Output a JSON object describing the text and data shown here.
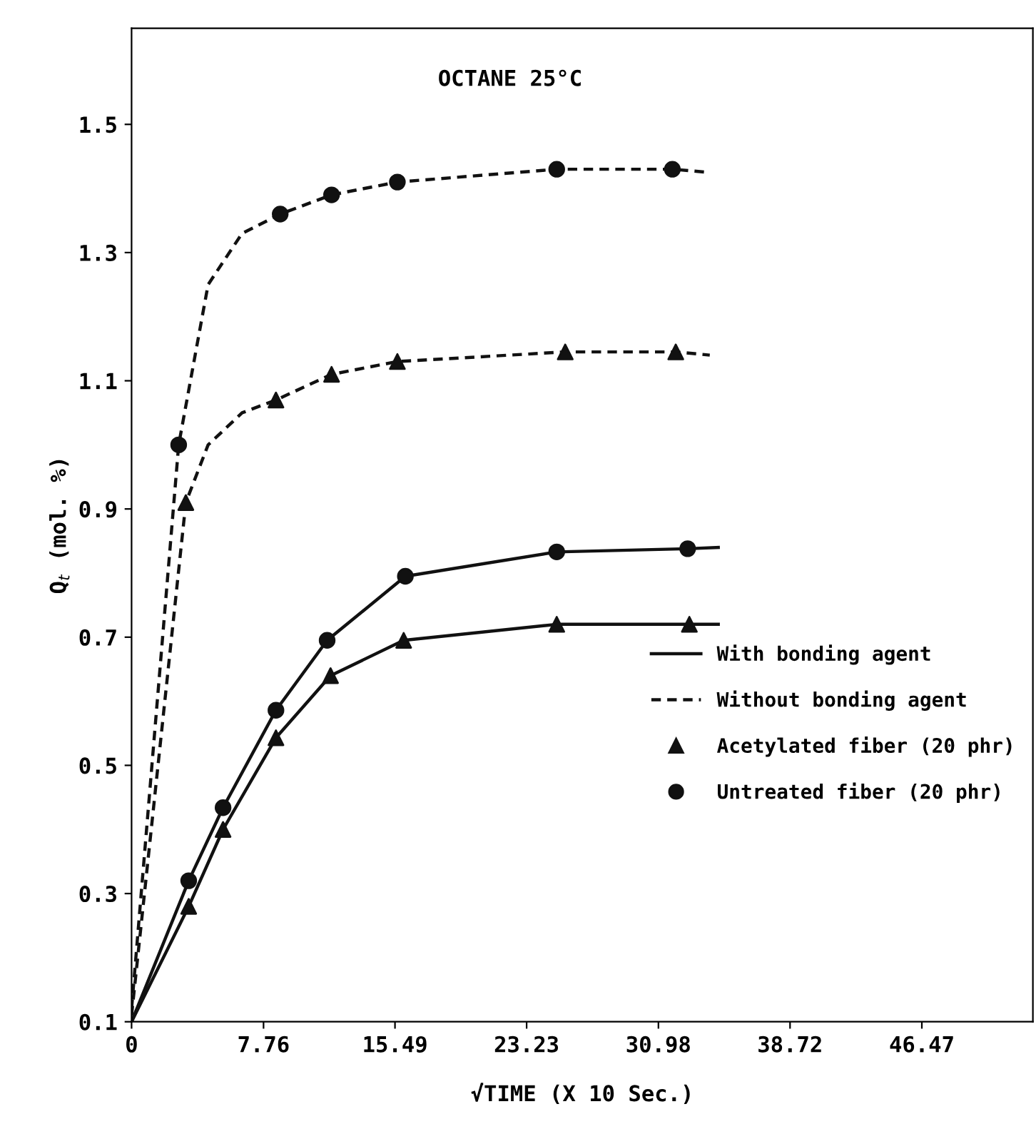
{
  "chart_data": {
    "type": "line",
    "title": "OCTANE 25°C",
    "xlabel": "√TIME (X 10 Sec.)",
    "ylabel": "Q$_{t}$ (mol. %)",
    "xlim": [
      0,
      53
    ],
    "ylim": [
      0.1,
      1.65
    ],
    "xticks": [
      0,
      7.76,
      15.49,
      23.23,
      30.98,
      38.72,
      46.47
    ],
    "yticks": [
      0.1,
      0.3,
      0.5,
      0.7,
      0.9,
      1.1,
      1.3,
      1.5
    ],
    "grid": false,
    "legend": "right",
    "series": [
      {
        "name": "With bonding agent",
        "line_style": "solid",
        "marker": "none",
        "color": "#111111",
        "x": [
          0,
          3.36,
          5.38,
          8.49,
          11.5,
          16.1,
          25,
          32.7,
          34.5
        ],
        "values": [
          0.1,
          0.32,
          0.434,
          0.586,
          0.695,
          0.795,
          0.833,
          0.838,
          0.84
        ]
      },
      {
        "line_style": "solid",
        "marker": "none",
        "color": "#111111",
        "x": [
          0,
          3.36,
          5.38,
          8.49,
          11.7,
          16,
          25,
          32.8,
          34.5
        ],
        "values": [
          0.1,
          0.28,
          0.4,
          0.543,
          0.64,
          0.695,
          0.72,
          0.72,
          0.72
        ]
      },
      {
        "name": "Without bonding agent",
        "line_style": "dashed",
        "marker": "none",
        "color": "#111111",
        "x": [
          0,
          2.77,
          4.5,
          6.5,
          8.74,
          11.76,
          15.63,
          25,
          31.8,
          34
        ],
        "values": [
          0.12,
          1.0,
          1.25,
          1.33,
          1.36,
          1.39,
          1.41,
          1.43,
          1.43,
          1.425
        ]
      },
      {
        "line_style": "dashed",
        "marker": "none",
        "color": "#111111",
        "x": [
          0,
          3.19,
          4.5,
          6.5,
          8.49,
          11.76,
          15.63,
          25.5,
          32,
          34
        ],
        "values": [
          0.11,
          0.91,
          1.0,
          1.05,
          1.07,
          1.11,
          1.13,
          1.145,
          1.145,
          1.14
        ]
      },
      {
        "name": "Acetylated fiber (20 phr)",
        "type": "scatter",
        "marker": "triangle",
        "color": "#111111",
        "x": [
          3.36,
          5.38,
          8.49,
          11.7,
          16,
          25,
          32.8,
          3.19,
          8.49,
          11.76,
          15.63,
          25.5,
          32
        ],
        "values": [
          0.28,
          0.4,
          0.543,
          0.64,
          0.695,
          0.72,
          0.72,
          0.91,
          1.07,
          1.11,
          1.13,
          1.145,
          1.145
        ]
      },
      {
        "name": "Untreated fiber (20 phr)",
        "type": "scatter",
        "marker": "circle",
        "color": "#111111",
        "x": [
          3.36,
          5.38,
          8.49,
          11.5,
          16.1,
          25,
          32.7,
          2.77,
          8.74,
          11.76,
          15.63,
          25,
          31.8
        ],
        "values": [
          0.32,
          0.434,
          0.586,
          0.695,
          0.795,
          0.833,
          0.838,
          1.0,
          1.36,
          1.39,
          1.41,
          1.43,
          1.43
        ]
      }
    ]
  }
}
